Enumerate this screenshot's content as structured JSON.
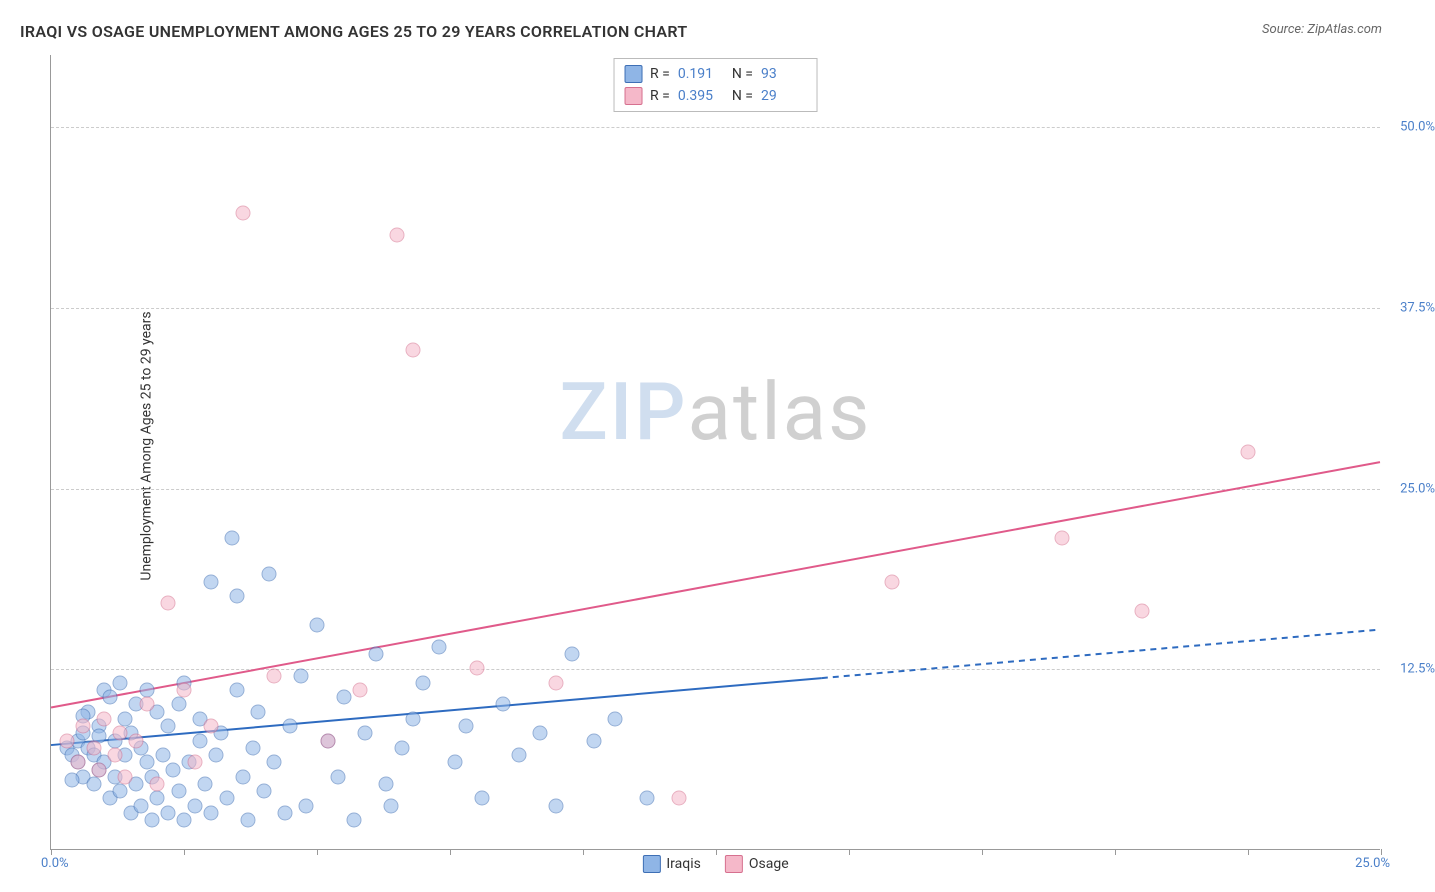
{
  "title": "IRAQI VS OSAGE UNEMPLOYMENT AMONG AGES 25 TO 29 YEARS CORRELATION CHART",
  "source": "Source: ZipAtlas.com",
  "y_axis_label": "Unemployment Among Ages 25 to 29 years",
  "watermark": {
    "part1": "ZIP",
    "part2": "atlas"
  },
  "chart": {
    "type": "scatter",
    "xlim": [
      0,
      25
    ],
    "ylim": [
      0,
      55
    ],
    "x_ticks": [
      0,
      2.5,
      5,
      7.5,
      10,
      12.5,
      15,
      17.5,
      20,
      22.5,
      25
    ],
    "y_ticks": [
      12.5,
      25.0,
      37.5,
      50.0
    ],
    "x_axis_min_label": "0.0%",
    "x_axis_max_label": "25.0%",
    "y_tick_labels": [
      "12.5%",
      "25.0%",
      "37.5%",
      "50.0%"
    ],
    "grid_color": "#cccccc",
    "background_color": "#ffffff",
    "axis_color": "#999999",
    "tick_label_color": "#4a7fc9",
    "marker_radius": 7.5,
    "marker_opacity": 0.55,
    "series": [
      {
        "name": "Iraqis",
        "fill_color": "#8fb5e6",
        "stroke_color": "#3e6fb5",
        "r_value": "0.191",
        "n_value": "93",
        "trend": {
          "y_intercept": 7.2,
          "slope": 0.32,
          "solid_until_x": 14.5,
          "color": "#2e6bc0",
          "width": 2
        },
        "points": [
          [
            0.3,
            7.0
          ],
          [
            0.4,
            6.5
          ],
          [
            0.5,
            7.5
          ],
          [
            0.5,
            6.0
          ],
          [
            0.6,
            5.0
          ],
          [
            0.6,
            8.0
          ],
          [
            0.7,
            7.0
          ],
          [
            0.7,
            9.5
          ],
          [
            0.8,
            6.5
          ],
          [
            0.8,
            4.5
          ],
          [
            0.9,
            5.5
          ],
          [
            0.9,
            8.5
          ],
          [
            1.0,
            11.0
          ],
          [
            1.0,
            6.0
          ],
          [
            1.1,
            3.5
          ],
          [
            1.1,
            10.5
          ],
          [
            1.2,
            7.5
          ],
          [
            1.2,
            5.0
          ],
          [
            1.3,
            4.0
          ],
          [
            1.3,
            11.5
          ],
          [
            1.4,
            6.5
          ],
          [
            1.4,
            9.0
          ],
          [
            1.5,
            2.5
          ],
          [
            1.5,
            8.0
          ],
          [
            1.6,
            4.5
          ],
          [
            1.6,
            10.0
          ],
          [
            1.7,
            3.0
          ],
          [
            1.7,
            7.0
          ],
          [
            1.8,
            6.0
          ],
          [
            1.8,
            11.0
          ],
          [
            1.9,
            5.0
          ],
          [
            1.9,
            2.0
          ],
          [
            2.0,
            9.5
          ],
          [
            2.0,
            3.5
          ],
          [
            2.1,
            6.5
          ],
          [
            2.2,
            2.5
          ],
          [
            2.2,
            8.5
          ],
          [
            2.3,
            5.5
          ],
          [
            2.4,
            10.0
          ],
          [
            2.4,
            4.0
          ],
          [
            2.5,
            2.0
          ],
          [
            2.5,
            11.5
          ],
          [
            2.6,
            6.0
          ],
          [
            2.7,
            3.0
          ],
          [
            2.8,
            7.5
          ],
          [
            2.8,
            9.0
          ],
          [
            2.9,
            4.5
          ],
          [
            3.0,
            18.5
          ],
          [
            3.0,
            2.5
          ],
          [
            3.1,
            6.5
          ],
          [
            3.2,
            8.0
          ],
          [
            3.3,
            3.5
          ],
          [
            3.4,
            21.5
          ],
          [
            3.5,
            17.5
          ],
          [
            3.5,
            11.0
          ],
          [
            3.6,
            5.0
          ],
          [
            3.7,
            2.0
          ],
          [
            3.8,
            7.0
          ],
          [
            3.9,
            9.5
          ],
          [
            4.0,
            4.0
          ],
          [
            4.1,
            19.0
          ],
          [
            4.2,
            6.0
          ],
          [
            4.4,
            2.5
          ],
          [
            4.5,
            8.5
          ],
          [
            4.7,
            12.0
          ],
          [
            4.8,
            3.0
          ],
          [
            5.0,
            15.5
          ],
          [
            5.2,
            7.5
          ],
          [
            5.4,
            5.0
          ],
          [
            5.5,
            10.5
          ],
          [
            5.7,
            2.0
          ],
          [
            5.9,
            8.0
          ],
          [
            6.1,
            13.5
          ],
          [
            6.3,
            4.5
          ],
          [
            6.4,
            3.0
          ],
          [
            6.6,
            7.0
          ],
          [
            6.8,
            9.0
          ],
          [
            7.0,
            11.5
          ],
          [
            7.3,
            14.0
          ],
          [
            7.6,
            6.0
          ],
          [
            7.8,
            8.5
          ],
          [
            8.1,
            3.5
          ],
          [
            8.5,
            10.0
          ],
          [
            8.8,
            6.5
          ],
          [
            9.2,
            8.0
          ],
          [
            9.5,
            3.0
          ],
          [
            9.8,
            13.5
          ],
          [
            10.2,
            7.5
          ],
          [
            10.6,
            9.0
          ],
          [
            11.2,
            3.5
          ],
          [
            0.4,
            4.8
          ],
          [
            0.6,
            9.2
          ],
          [
            0.9,
            7.8
          ]
        ]
      },
      {
        "name": "Osage",
        "fill_color": "#f5b8c9",
        "stroke_color": "#d6708f",
        "r_value": "0.395",
        "n_value": "29",
        "trend": {
          "y_intercept": 9.8,
          "slope": 0.68,
          "solid_until_x": 25,
          "color": "#e05a8a",
          "width": 2
        },
        "points": [
          [
            0.3,
            7.5
          ],
          [
            0.5,
            6.0
          ],
          [
            0.6,
            8.5
          ],
          [
            0.8,
            7.0
          ],
          [
            0.9,
            5.5
          ],
          [
            1.0,
            9.0
          ],
          [
            1.2,
            6.5
          ],
          [
            1.3,
            8.0
          ],
          [
            1.4,
            5.0
          ],
          [
            1.6,
            7.5
          ],
          [
            1.8,
            10.0
          ],
          [
            2.0,
            4.5
          ],
          [
            2.2,
            17.0
          ],
          [
            2.5,
            11.0
          ],
          [
            2.7,
            6.0
          ],
          [
            3.0,
            8.5
          ],
          [
            3.6,
            44.0
          ],
          [
            4.2,
            12.0
          ],
          [
            5.2,
            7.5
          ],
          [
            5.8,
            11.0
          ],
          [
            6.5,
            42.5
          ],
          [
            6.8,
            34.5
          ],
          [
            8.0,
            12.5
          ],
          [
            9.5,
            11.5
          ],
          [
            11.8,
            3.5
          ],
          [
            15.8,
            18.5
          ],
          [
            19.0,
            21.5
          ],
          [
            20.5,
            16.5
          ],
          [
            22.5,
            27.5
          ]
        ]
      }
    ]
  },
  "legend_top": {
    "r_label": "R =",
    "n_label": "N ="
  },
  "legend_bottom": [
    {
      "label": "Iraqis",
      "fill": "#8fb5e6",
      "stroke": "#3e6fb5"
    },
    {
      "label": "Osage",
      "fill": "#f5b8c9",
      "stroke": "#d6708f"
    }
  ]
}
